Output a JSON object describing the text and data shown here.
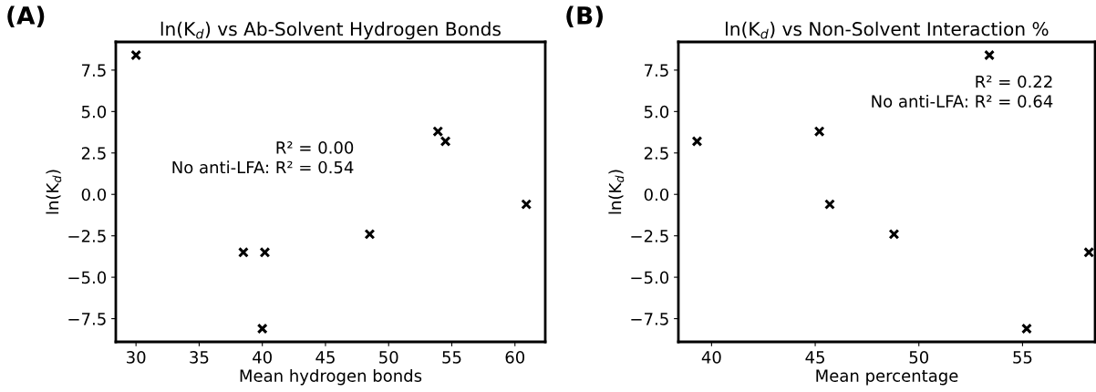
{
  "chart_data": [
    {
      "type": "scatter",
      "title": "ln(K$_{d}$) vs Ab-Solvent Hydrogen Bonds",
      "xlabel": "Mean hydrogen bonds",
      "ylabel": "ln(K$_{d}$)",
      "marker": "cross",
      "grid": false,
      "legend": false,
      "annotations": [
        "(A)",
        "R² = 0.00\nNo anti-LFA: R² = 0.54"
      ],
      "xlim": [
        28.4,
        62.4
      ],
      "xticks": [
        30,
        35,
        40,
        45,
        50,
        55,
        60
      ],
      "ylim": [
        -8.9,
        9.2
      ],
      "yticks": [
        {
          "value": -7.5,
          "label": "−7.5"
        },
        {
          "value": -5,
          "label": "−5.0"
        },
        {
          "value": -2.5,
          "label": "−2.5"
        },
        {
          "value": 0,
          "label": "0.0"
        },
        {
          "value": 2.5,
          "label": "2.5"
        },
        {
          "value": 5,
          "label": "5.0"
        },
        {
          "value": 7.5,
          "label": "7.5"
        }
      ],
      "series": [
        {
          "color": "#000000",
          "x": [
            30.0,
            38.5,
            40.2,
            40.0,
            48.5,
            53.9,
            54.5,
            60.9
          ],
          "values": [
            8.4,
            -3.5,
            -3.5,
            -8.1,
            -2.4,
            3.8,
            3.2,
            -0.6
          ]
        }
      ]
    },
    {
      "type": "scatter",
      "title": "ln(K$_{d}$) vs Non-Solvent Interaction %",
      "xlabel": "Mean percentage",
      "ylabel": "ln(K$_{d}$)",
      "marker": "cross",
      "grid": false,
      "legend": false,
      "annotations": [
        "(B)",
        "R² = 0.22\nNo anti-LFA: R² = 0.64"
      ],
      "xlim": [
        38.4,
        58.5
      ],
      "xticks": [
        40,
        45,
        50,
        55
      ],
      "ylim": [
        -8.9,
        9.2
      ],
      "yticks": [
        {
          "value": -7.5,
          "label": "−7.5"
        },
        {
          "value": -5,
          "label": "−5.0"
        },
        {
          "value": -2.5,
          "label": "−2.5"
        },
        {
          "value": 0,
          "label": "0.0"
        },
        {
          "value": 2.5,
          "label": "2.5"
        },
        {
          "value": 5,
          "label": "5.0"
        },
        {
          "value": 7.5,
          "label": "7.5"
        }
      ],
      "series": [
        {
          "color": "#000000",
          "x": [
            39.3,
            45.2,
            45.7,
            48.8,
            53.4,
            55.2,
            58.2
          ],
          "values": [
            3.2,
            3.8,
            -0.6,
            -2.4,
            8.4,
            -8.1,
            -3.5
          ]
        }
      ]
    }
  ]
}
